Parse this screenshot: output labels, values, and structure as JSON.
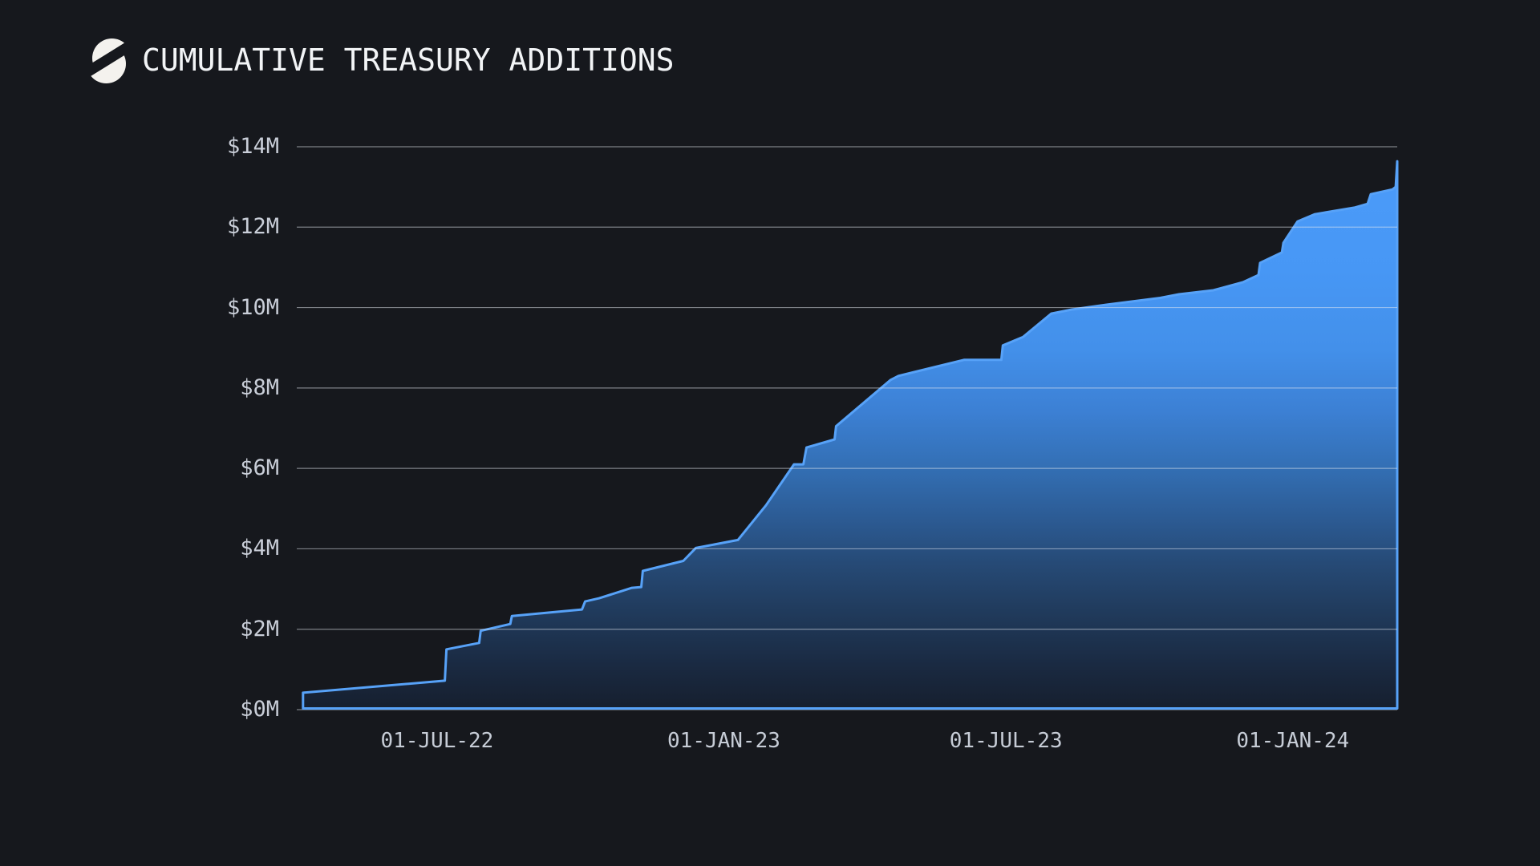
{
  "header": {
    "title": "CUMULATIVE TREASURY ADDITIONS",
    "logo": "slashed-circle-logo"
  },
  "chart_data": {
    "type": "area",
    "title": "CUMULATIVE TREASURY ADDITIONS",
    "xlabel": "",
    "ylabel": "",
    "unit": "USD millions",
    "ylim": [
      0,
      14
    ],
    "grid": "horizontal",
    "legend": "none",
    "x_domain": [
      "2022-04-02",
      "2024-03-08"
    ],
    "y_ticks": [
      "$14M",
      "$12M",
      "$10M",
      "$8M",
      "$6M",
      "$4M",
      "$2M",
      "$0M"
    ],
    "y_tick_values": [
      14,
      12,
      10,
      8,
      6,
      4,
      2,
      0
    ],
    "x_ticks": [
      "01-JUL-22",
      "01-JAN-23",
      "01-JUL-23",
      "01-JAN-24"
    ],
    "x_tick_dates": [
      "2022-07-01",
      "2023-01-01",
      "2023-07-01",
      "2024-01-01"
    ],
    "series": [
      {
        "name": "cumulative-treasury-additions",
        "points": [
          [
            "2022-04-06",
            0.42
          ],
          [
            "2022-07-06",
            0.72
          ],
          [
            "2022-07-07",
            1.5
          ],
          [
            "2022-07-28",
            1.66
          ],
          [
            "2022-07-29",
            1.96
          ],
          [
            "2022-08-17",
            2.13
          ],
          [
            "2022-08-18",
            2.33
          ],
          [
            "2022-10-02",
            2.49
          ],
          [
            "2022-10-04",
            2.69
          ],
          [
            "2022-10-13",
            2.77
          ],
          [
            "2022-11-03",
            3.03
          ],
          [
            "2022-11-09",
            3.05
          ],
          [
            "2022-11-10",
            3.45
          ],
          [
            "2022-12-06",
            3.7
          ],
          [
            "2022-12-14",
            4.02
          ],
          [
            "2023-01-10",
            4.22
          ],
          [
            "2023-01-28",
            5.08
          ],
          [
            "2023-02-15",
            6.1
          ],
          [
            "2023-02-21",
            6.1
          ],
          [
            "2023-02-23",
            6.52
          ],
          [
            "2023-03-13",
            6.72
          ],
          [
            "2023-03-14",
            7.05
          ],
          [
            "2023-04-18",
            8.2
          ],
          [
            "2023-04-23",
            8.3
          ],
          [
            "2023-06-04",
            8.7
          ],
          [
            "2023-06-28",
            8.7
          ],
          [
            "2023-06-29",
            9.06
          ],
          [
            "2023-07-12",
            9.27
          ],
          [
            "2023-07-30",
            9.85
          ],
          [
            "2023-08-12",
            9.95
          ],
          [
            "2023-09-03",
            10.07
          ],
          [
            "2023-10-08",
            10.24
          ],
          [
            "2023-10-20",
            10.33
          ],
          [
            "2023-11-11",
            10.43
          ],
          [
            "2023-11-30",
            10.63
          ],
          [
            "2023-12-10",
            10.81
          ],
          [
            "2023-12-11",
            11.11
          ],
          [
            "2023-12-25",
            11.37
          ],
          [
            "2023-12-26",
            11.61
          ],
          [
            "2024-01-04",
            12.14
          ],
          [
            "2024-01-15",
            12.32
          ],
          [
            "2024-02-10",
            12.49
          ],
          [
            "2024-02-18",
            12.58
          ],
          [
            "2024-02-20",
            12.82
          ],
          [
            "2024-03-05",
            12.94
          ],
          [
            "2024-03-07",
            13.0
          ],
          [
            "2024-03-08",
            13.64
          ]
        ]
      }
    ],
    "colors": {
      "background": "#16181d",
      "line": "#57a2f8",
      "area_top": "#4c9cfa",
      "area_bottom": "#161f2e",
      "gridline": "#e3e8ef",
      "tick_label": "#c9ced8",
      "title": "#f2f4f6",
      "logo": "#f4f2ee"
    }
  }
}
